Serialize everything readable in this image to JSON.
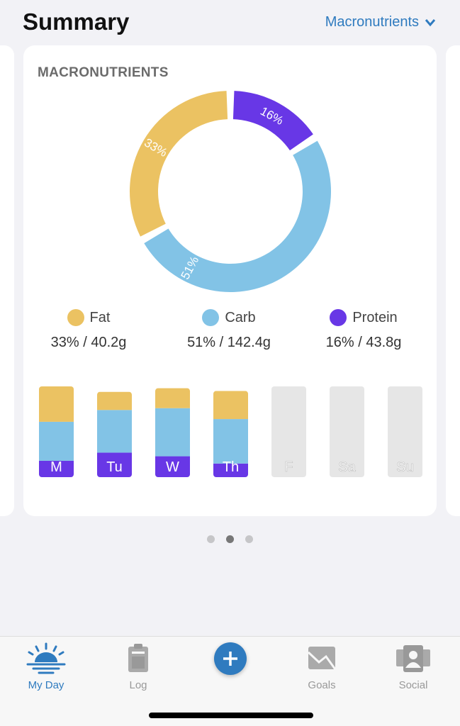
{
  "header": {
    "title": "Summary",
    "selector": "Macronutrients"
  },
  "card": {
    "title": "MACRONUTRIENTS"
  },
  "colors": {
    "fat": "#ebc262",
    "carb": "#82c3e6",
    "protein": "#6837e6",
    "empty": "#e6e6e6",
    "accent": "#2f7bbf"
  },
  "chart_data": [
    {
      "type": "pie",
      "style": "donut",
      "slices": [
        {
          "name": "Protein",
          "value": 16,
          "label": "16%"
        },
        {
          "name": "Carb",
          "value": 51,
          "label": "51%"
        },
        {
          "name": "Fat",
          "value": 33,
          "label": "33%"
        }
      ]
    },
    {
      "type": "bar",
      "stacked": true,
      "categories": [
        "M",
        "Tu",
        "W",
        "Th",
        "F",
        "Sa",
        "Su"
      ],
      "series": [
        {
          "name": "Protein",
          "values": [
            18,
            27,
            23,
            15,
            0,
            0,
            0
          ]
        },
        {
          "name": "Carb",
          "values": [
            43,
            47,
            53,
            49,
            0,
            0,
            0
          ]
        },
        {
          "name": "Fat",
          "values": [
            39,
            20,
            22,
            31,
            0,
            0,
            0
          ]
        }
      ],
      "ylim": [
        0,
        100
      ]
    }
  ],
  "legend": [
    {
      "name": "Fat",
      "value": "33% / 40.2g"
    },
    {
      "name": "Carb",
      "value": "51% / 142.4g"
    },
    {
      "name": "Protein",
      "value": "16% / 43.8g"
    }
  ],
  "pager": {
    "count": 3,
    "active": 1
  },
  "tabs": [
    {
      "label": "My Day",
      "icon": "sunrise-icon",
      "active": true
    },
    {
      "label": "Log",
      "icon": "clipboard-icon"
    },
    {
      "label": "",
      "icon": "plus-icon"
    },
    {
      "label": "Goals",
      "icon": "goals-chart-icon"
    },
    {
      "label": "Social",
      "icon": "people-icon"
    }
  ]
}
